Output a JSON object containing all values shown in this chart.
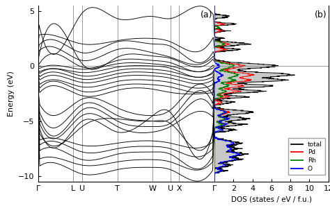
{
  "band_ylim": [
    -10.5,
    5.5
  ],
  "band_yticks": [
    -10,
    -5,
    0,
    5
  ],
  "band_ylabel": "Energy (eV)",
  "kpoints": [
    "Γ",
    "L",
    "U",
    "T",
    "W",
    "U",
    "X",
    "Γ"
  ],
  "kpoint_positions": [
    0.0,
    1.0,
    1.25,
    2.25,
    3.25,
    3.75,
    4.0,
    5.0
  ],
  "vline_positions": [
    1.0,
    1.25,
    2.25,
    3.25,
    3.75,
    4.0
  ],
  "dos_xlim": [
    0,
    12
  ],
  "dos_xticks": [
    2,
    4,
    6,
    8,
    10,
    12
  ],
  "dos_xlabel": "DOS (states / eV / f.u.)",
  "label_a": "(a)",
  "label_b": "(b)",
  "legend_labels": [
    "total",
    "Pd",
    "Rh",
    "O"
  ],
  "legend_colors": [
    "black",
    "red",
    "green",
    "blue"
  ],
  "fig_width": 4.74,
  "fig_height": 3.1
}
